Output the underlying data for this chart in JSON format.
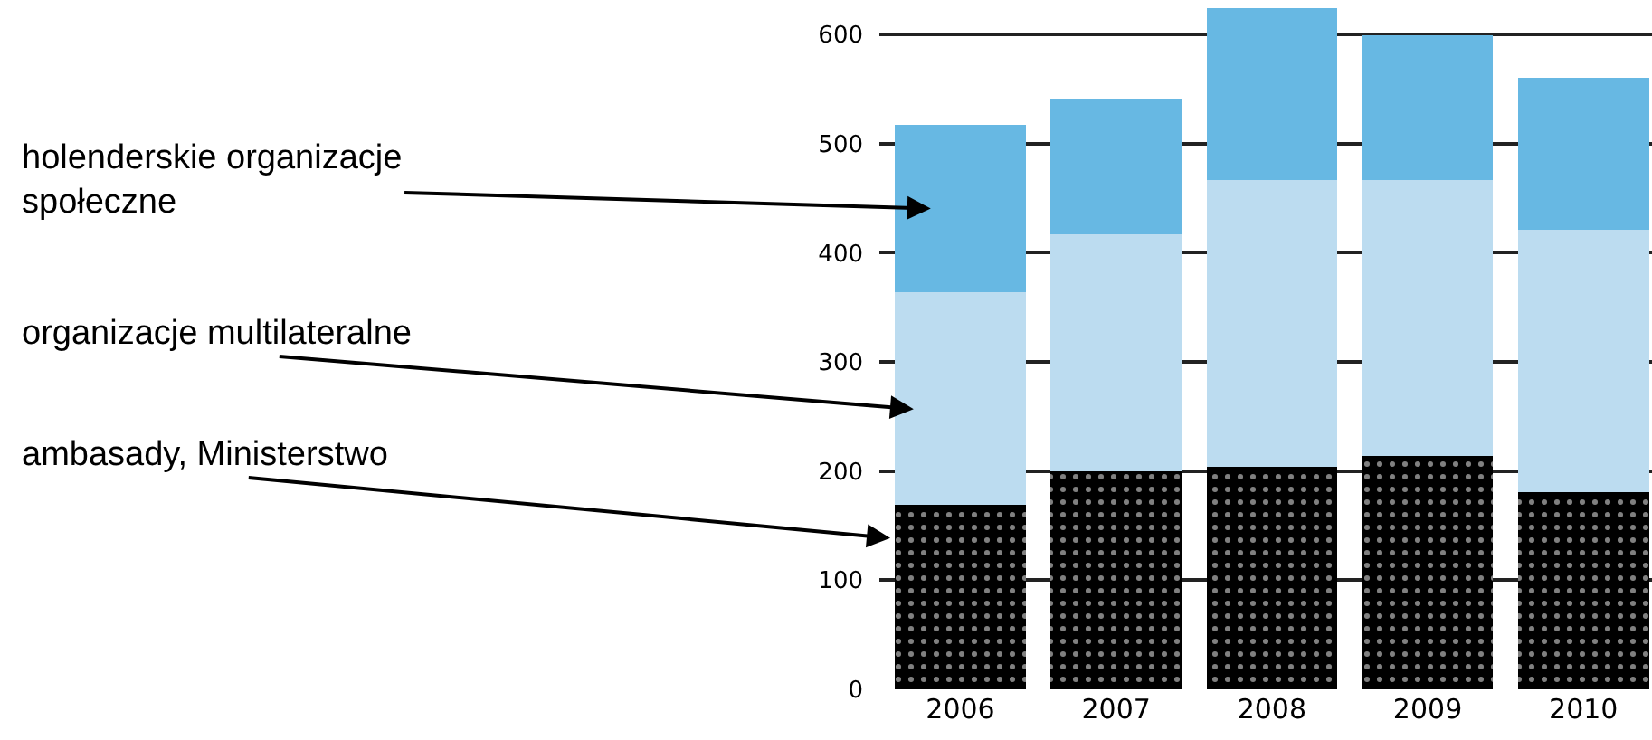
{
  "chart_data": {
    "type": "bar",
    "stacked": true,
    "categories": [
      "2006",
      "2007",
      "2008",
      "2009",
      "2010"
    ],
    "series": [
      {
        "name": "ambasady, Ministerstwo",
        "color": "#000000",
        "values": [
          169,
          200,
          204,
          214,
          181
        ]
      },
      {
        "name": "organizacje multilateralne",
        "color": "#bcdcf0",
        "values": [
          195,
          217,
          263,
          253,
          240
        ]
      },
      {
        "name": "holenderskie organizacje społeczne",
        "color": "#67b8e3",
        "values": [
          153,
          124,
          157,
          132,
          139
        ]
      }
    ],
    "ylim": [
      0,
      630
    ],
    "yticks": [
      0,
      100,
      200,
      300,
      400,
      500,
      600
    ],
    "grid": "y",
    "legend": false
  }
}
